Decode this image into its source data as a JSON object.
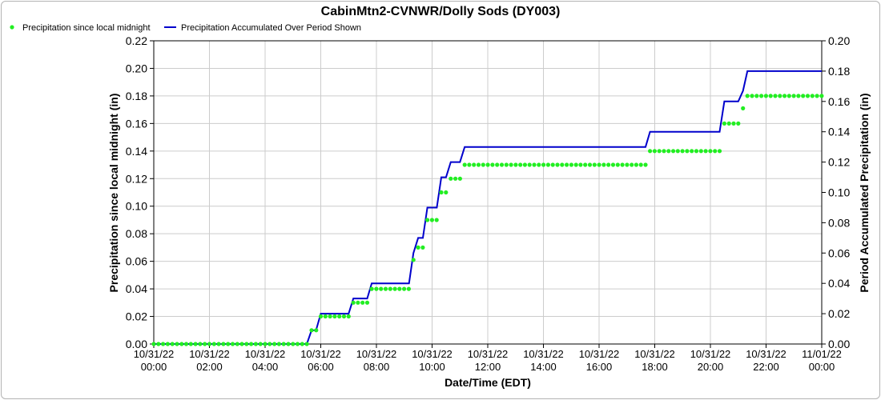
{
  "chart_data": {
    "type": "line",
    "title": "CabinMtn2-CVNWR/Dolly Sods (DY003)",
    "xlabel": "Date/Time (EDT)",
    "ylabel_left": "Precipitation since local midnight (in)",
    "ylabel_right": "Period Accumulated Precipitation (in)",
    "xlim": [
      0,
      24
    ],
    "ylim_left": [
      0,
      0.22
    ],
    "ylim_right": [
      0,
      0.2
    ],
    "grid": true,
    "legend_placement": "top-left",
    "x_tick_labels": [
      [
        "10/31/22",
        "00:00"
      ],
      [
        "10/31/22",
        "02:00"
      ],
      [
        "10/31/22",
        "04:00"
      ],
      [
        "10/31/22",
        "06:00"
      ],
      [
        "10/31/22",
        "08:00"
      ],
      [
        "10/31/22",
        "10:00"
      ],
      [
        "10/31/22",
        "12:00"
      ],
      [
        "10/31/22",
        "14:00"
      ],
      [
        "10/31/22",
        "16:00"
      ],
      [
        "10/31/22",
        "18:00"
      ],
      [
        "10/31/22",
        "20:00"
      ],
      [
        "10/31/22",
        "22:00"
      ],
      [
        "11/01/22",
        "00:00"
      ]
    ],
    "y_left_ticks": [
      "0.00",
      "0.02",
      "0.04",
      "0.06",
      "0.08",
      "0.10",
      "0.12",
      "0.14",
      "0.16",
      "0.18",
      "0.20",
      "0.22"
    ],
    "y_right_ticks": [
      "0.00",
      "0.02",
      "0.04",
      "0.06",
      "0.08",
      "0.10",
      "0.12",
      "0.14",
      "0.16",
      "0.18",
      "0.20"
    ],
    "series": [
      {
        "name": "Precipitation since local midnight",
        "axis": "left",
        "style": "points",
        "color": "#22ee22",
        "segments": [
          {
            "from": 0.0,
            "to": 5.5,
            "value": 0.0
          },
          {
            "from": 5.67,
            "to": 5.83,
            "value": 0.01
          },
          {
            "from": 6.0,
            "to": 7.0,
            "value": 0.02
          },
          {
            "from": 7.17,
            "to": 7.67,
            "value": 0.03
          },
          {
            "from": 7.83,
            "to": 9.17,
            "value": 0.04
          },
          {
            "from": 9.33,
            "to": 9.33,
            "value": 0.061
          },
          {
            "from": 9.5,
            "to": 9.67,
            "value": 0.07
          },
          {
            "from": 9.83,
            "to": 10.17,
            "value": 0.09
          },
          {
            "from": 10.33,
            "to": 10.5,
            "value": 0.11
          },
          {
            "from": 10.67,
            "to": 11.0,
            "value": 0.12
          },
          {
            "from": 11.17,
            "to": 17.67,
            "value": 0.13
          },
          {
            "from": 17.83,
            "to": 20.33,
            "value": 0.14
          },
          {
            "from": 20.5,
            "to": 21.0,
            "value": 0.16
          },
          {
            "from": 21.17,
            "to": 21.17,
            "value": 0.171
          },
          {
            "from": 21.33,
            "to": 24.0,
            "value": 0.18
          }
        ]
      },
      {
        "name": "Precipitation Accumulated Over Period Shown",
        "axis": "right",
        "style": "step-line",
        "color": "#0000cc",
        "points": [
          [
            0.0,
            0.0
          ],
          [
            5.5,
            0.0
          ],
          [
            5.67,
            0.009
          ],
          [
            5.83,
            0.009
          ],
          [
            6.0,
            0.02
          ],
          [
            7.0,
            0.02
          ],
          [
            7.17,
            0.03
          ],
          [
            7.67,
            0.03
          ],
          [
            7.83,
            0.04
          ],
          [
            9.17,
            0.04
          ],
          [
            9.33,
            0.06
          ],
          [
            9.5,
            0.07
          ],
          [
            9.67,
            0.07
          ],
          [
            9.83,
            0.09
          ],
          [
            10.17,
            0.09
          ],
          [
            10.33,
            0.11
          ],
          [
            10.5,
            0.11
          ],
          [
            10.67,
            0.12
          ],
          [
            11.0,
            0.12
          ],
          [
            11.17,
            0.13
          ],
          [
            17.67,
            0.13
          ],
          [
            17.83,
            0.14
          ],
          [
            20.33,
            0.14
          ],
          [
            20.5,
            0.16
          ],
          [
            21.0,
            0.16
          ],
          [
            21.17,
            0.167
          ],
          [
            21.33,
            0.18
          ],
          [
            24.0,
            0.18
          ]
        ]
      }
    ]
  }
}
